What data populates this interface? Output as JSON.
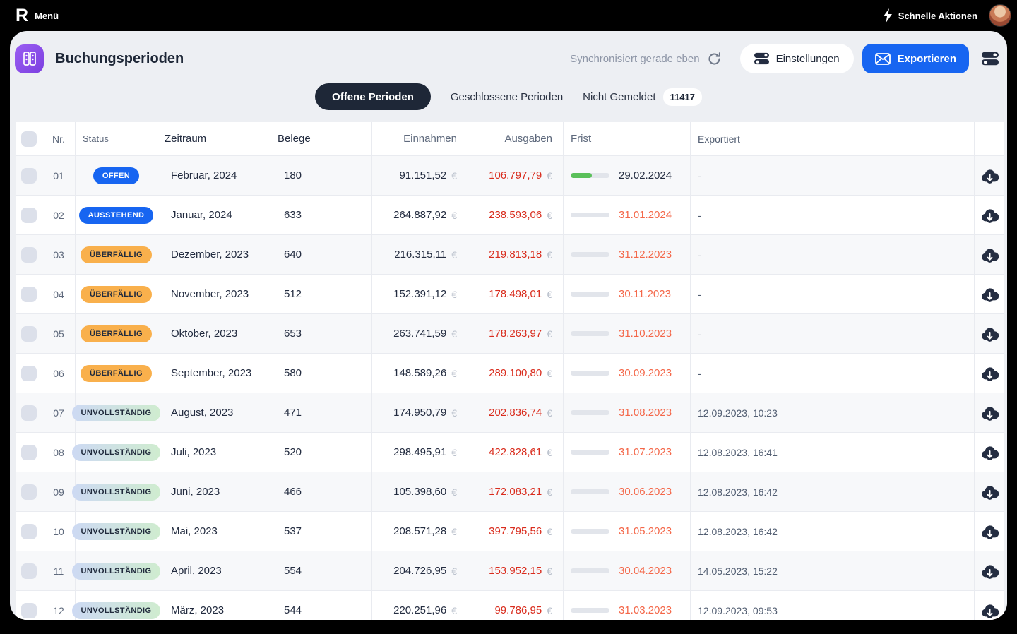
{
  "topbar": {
    "logo": "R",
    "menu_label": "Menü",
    "quick_actions_label": "Schnelle Aktionen"
  },
  "header": {
    "title": "Buchungsperioden",
    "sync_status": "Synchronisiert gerade eben",
    "settings_label": "Einstellungen",
    "export_label": "Exportieren"
  },
  "tabs": [
    {
      "label": "Offene Perioden",
      "active": true
    },
    {
      "label": "Geschlossene Perioden",
      "active": false
    },
    {
      "label": "Nicht Gemeldet",
      "active": false,
      "badge": "11417"
    }
  ],
  "icons": {
    "app_icon": "binders-icon",
    "refresh": "refresh-icon",
    "settings": "toggles-icon",
    "export": "envelope-icon",
    "view": "toggles-icon",
    "lightning": "lightning-icon",
    "row_action": "cloud-download-icon"
  },
  "colors": {
    "accent_blue": "#1765f1",
    "amber": "#f9b04c",
    "expense_red": "#d92c1d",
    "deadline_orange": "#f46749",
    "progress_green": "#5ac05a",
    "app_purple": "#8b4fe8"
  },
  "table": {
    "currency_symbol": "€",
    "columns": {
      "nr": "Nr.",
      "status": "Status",
      "zeitraum": "Zeitraum",
      "belege": "Belege",
      "einnahmen": "Einnahmen",
      "ausgaben": "Ausgaben",
      "frist": "Frist",
      "exportiert": "Exportiert"
    },
    "rows": [
      {
        "nr": "01",
        "status": "OFFEN",
        "status_variant": "blue",
        "period": "Februar, 2024",
        "docs": "180",
        "income": "91.151,52",
        "expense": "106.797,79",
        "deadline": "29.02.2024",
        "deadline_state": "current",
        "progress": 55,
        "exported": "-"
      },
      {
        "nr": "02",
        "status": "AUSSTEHEND",
        "status_variant": "blue",
        "period": "Januar, 2024",
        "docs": "633",
        "income": "264.887,92",
        "expense": "238.593,06",
        "deadline": "31.01.2024",
        "deadline_state": "overdue",
        "progress": 0,
        "exported": "-"
      },
      {
        "nr": "03",
        "status": "ÜBERFÄLLIG",
        "status_variant": "amber",
        "period": "Dezember, 2023",
        "docs": "640",
        "income": "216.315,11",
        "expense": "219.813,18",
        "deadline": "31.12.2023",
        "deadline_state": "overdue",
        "progress": 0,
        "exported": "-"
      },
      {
        "nr": "04",
        "status": "ÜBERFÄLLIG",
        "status_variant": "amber",
        "period": "November, 2023",
        "docs": "512",
        "income": "152.391,12",
        "expense": "178.498,01",
        "deadline": "30.11.2023",
        "deadline_state": "overdue",
        "progress": 0,
        "exported": "-"
      },
      {
        "nr": "05",
        "status": "ÜBERFÄLLIG",
        "status_variant": "amber",
        "period": "Oktober, 2023",
        "docs": "653",
        "income": "263.741,59",
        "expense": "178.263,97",
        "deadline": "31.10.2023",
        "deadline_state": "overdue",
        "progress": 0,
        "exported": "-"
      },
      {
        "nr": "06",
        "status": "ÜBERFÄLLIG",
        "status_variant": "amber",
        "period": "September, 2023",
        "docs": "580",
        "income": "148.589,26",
        "expense": "289.100,80",
        "deadline": "30.09.2023",
        "deadline_state": "overdue",
        "progress": 0,
        "exported": "-"
      },
      {
        "nr": "07",
        "status": "UNVOLLSTÄNDIG",
        "status_variant": "gradient",
        "period": "August, 2023",
        "docs": "471",
        "income": "174.950,79",
        "expense": "202.836,74",
        "deadline": "31.08.2023",
        "deadline_state": "overdue",
        "progress": 0,
        "exported": "12.09.2023, 10:23"
      },
      {
        "nr": "08",
        "status": "UNVOLLSTÄNDIG",
        "status_variant": "gradient",
        "period": "Juli, 2023",
        "docs": "520",
        "income": "298.495,91",
        "expense": "422.828,61",
        "deadline": "31.07.2023",
        "deadline_state": "overdue",
        "progress": 0,
        "exported": "12.08.2023, 16:41"
      },
      {
        "nr": "09",
        "status": "UNVOLLSTÄNDIG",
        "status_variant": "gradient",
        "period": "Juni, 2023",
        "docs": "466",
        "income": "105.398,60",
        "expense": "172.083,21",
        "deadline": "30.06.2023",
        "deadline_state": "overdue",
        "progress": 0,
        "exported": "12.08.2023, 16:42"
      },
      {
        "nr": "10",
        "status": "UNVOLLSTÄNDIG",
        "status_variant": "gradient",
        "period": "Mai, 2023",
        "docs": "537",
        "income": "208.571,28",
        "expense": "397.795,56",
        "deadline": "31.05.2023",
        "deadline_state": "overdue",
        "progress": 0,
        "exported": "12.08.2023, 16:42"
      },
      {
        "nr": "11",
        "status": "UNVOLLSTÄNDIG",
        "status_variant": "gradient",
        "period": "April, 2023",
        "docs": "554",
        "income": "204.726,95",
        "expense": "153.952,15",
        "deadline": "30.04.2023",
        "deadline_state": "overdue",
        "progress": 0,
        "exported": "14.05.2023, 15:22"
      },
      {
        "nr": "12",
        "status": "UNVOLLSTÄNDIG",
        "status_variant": "gradient",
        "period": "März, 2023",
        "docs": "544",
        "income": "220.251,96",
        "expense": "99.786,95",
        "deadline": "31.03.2023",
        "deadline_state": "overdue",
        "progress": 0,
        "exported": "12.09.2023, 09:53"
      }
    ]
  }
}
